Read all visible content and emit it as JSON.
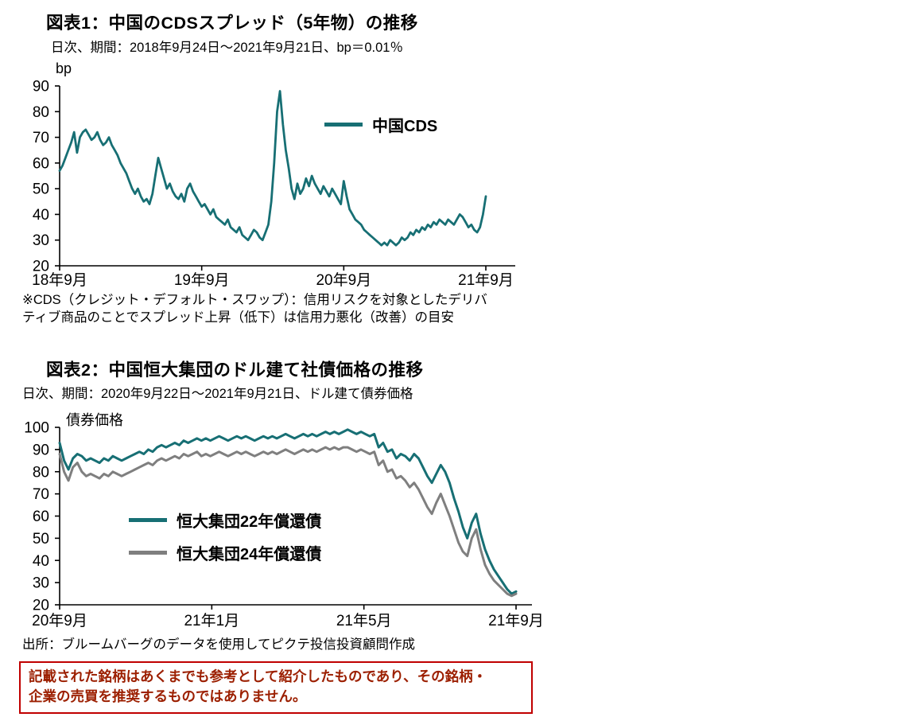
{
  "colors": {
    "teal": "#176f74",
    "gray": "#7f7f7f",
    "axis": "#000000",
    "disclaimer_border": "#c00000",
    "disclaimer_text": "#9c1f00"
  },
  "figure1": {
    "title": "図表1：中国のCDSスプレッド（5年物）の推移",
    "subtitle": "日次、期間：2018年9月24日～2021年9月21日、bp＝0.01％",
    "legend_series1": "中国CDS",
    "note_line1": "※CDS（クレジット・デフォルト・スワップ）：信用リスクを対象としたデリバ",
    "note_line2": "ティブ商品のことでスプレッド上昇（低下）は信用力悪化（改善）の目安"
  },
  "figure2": {
    "title": "図表2：中国恒大集団のドル建て社債価格の推移",
    "subtitle": "日次、期間：2020年9月22日～2021年9月21日、ドル建て債券価格",
    "legend_series1": "恒大集団22年償還債",
    "legend_series2": "恒大集団24年償還債",
    "source": "出所：ブルームバーグのデータを使用してピクテ投信投資顧問作成",
    "disclaimer_line1": "記載された銘柄はあくまでも参考として紹介したものであり、その銘柄・",
    "disclaimer_line2": "企業の売買を推奨するものではありません。"
  },
  "chart_data": [
    {
      "type": "line",
      "title": "図表1：中国のCDSスプレッド（5年物）の推移",
      "subtitle": "日次、期間：2018年9月24日～2021年9月21日、bp＝0.01％",
      "ylabel": "bp",
      "xlabel": "",
      "ylim": [
        20,
        90
      ],
      "ytick_step": 10,
      "grid": false,
      "legend_position": "upper-center",
      "x_tick_labels": [
        "18年9月",
        "19年9月",
        "20年9月",
        "21年9月"
      ],
      "series": [
        {
          "name": "中国CDS",
          "color": "#176f74",
          "values": [
            57,
            59,
            62,
            65,
            68,
            72,
            64,
            70,
            72,
            73,
            71,
            69,
            70,
            72,
            69,
            67,
            68,
            70,
            67,
            65,
            63,
            60,
            58,
            56,
            53,
            50,
            48,
            50,
            47,
            45,
            46,
            44,
            48,
            55,
            62,
            58,
            54,
            50,
            52,
            49,
            47,
            46,
            48,
            45,
            50,
            52,
            49,
            47,
            45,
            43,
            44,
            42,
            40,
            42,
            39,
            38,
            37,
            36,
            38,
            35,
            34,
            33,
            35,
            32,
            31,
            30,
            32,
            34,
            33,
            31,
            30,
            33,
            36,
            45,
            60,
            80,
            88,
            75,
            65,
            58,
            50,
            46,
            52,
            48,
            50,
            54,
            51,
            55,
            52,
            50,
            48,
            51,
            49,
            47,
            50,
            48,
            46,
            44,
            53,
            47,
            42,
            40,
            38,
            37,
            36,
            34,
            33,
            32,
            31,
            30,
            29,
            28,
            29,
            28,
            30,
            29,
            28,
            29,
            31,
            30,
            31,
            33,
            32,
            34,
            33,
            35,
            34,
            36,
            35,
            37,
            36,
            38,
            37,
            36,
            38,
            37,
            36,
            38,
            40,
            39,
            37,
            35,
            36,
            34,
            33,
            35,
            40,
            47
          ]
        }
      ]
    },
    {
      "type": "line",
      "title": "図表2：中国恒大集団のドル建て社債価格の推移",
      "subtitle": "日次、期間：2020年9月22日～2021年9月21日、ドル建て債券価格",
      "ylabel": "債券価格",
      "xlabel": "",
      "ylim": [
        20,
        100
      ],
      "ytick_step": 10,
      "grid": false,
      "legend_position": "lower-left",
      "x_tick_labels": [
        "20年9月",
        "21年1月",
        "21年5月",
        "21年9月"
      ],
      "series": [
        {
          "name": "恒大集団22年償還債",
          "color": "#176f74",
          "values": [
            93,
            85,
            81,
            86,
            88,
            87,
            85,
            86,
            85,
            84,
            86,
            85,
            87,
            86,
            85,
            86,
            87,
            88,
            89,
            88,
            90,
            89,
            91,
            92,
            91,
            92,
            93,
            92,
            94,
            93,
            94,
            95,
            94,
            95,
            94,
            95,
            96,
            95,
            94,
            95,
            96,
            95,
            96,
            95,
            94,
            95,
            96,
            95,
            96,
            95,
            96,
            97,
            96,
            95,
            96,
            97,
            96,
            97,
            96,
            97,
            98,
            97,
            98,
            97,
            98,
            99,
            98,
            97,
            98,
            97,
            96,
            97,
            91,
            93,
            89,
            90,
            86,
            88,
            87,
            85,
            88,
            86,
            82,
            78,
            75,
            79,
            83,
            80,
            75,
            68,
            62,
            55,
            50,
            57,
            61,
            52,
            45,
            40,
            36,
            33,
            30,
            27,
            25,
            26
          ]
        },
        {
          "name": "恒大集団24年償還債",
          "color": "#7f7f7f",
          "values": [
            88,
            80,
            76,
            82,
            84,
            80,
            78,
            79,
            78,
            77,
            79,
            78,
            80,
            79,
            78,
            79,
            80,
            81,
            82,
            83,
            84,
            83,
            85,
            86,
            85,
            86,
            87,
            86,
            88,
            87,
            88,
            89,
            87,
            88,
            87,
            88,
            89,
            88,
            87,
            88,
            89,
            88,
            89,
            88,
            87,
            88,
            89,
            88,
            89,
            88,
            89,
            90,
            89,
            88,
            89,
            90,
            89,
            90,
            89,
            90,
            91,
            90,
            91,
            90,
            91,
            91,
            90,
            89,
            90,
            89,
            88,
            89,
            83,
            85,
            80,
            81,
            77,
            78,
            76,
            73,
            75,
            72,
            68,
            64,
            61,
            66,
            70,
            65,
            60,
            54,
            48,
            44,
            42,
            50,
            54,
            45,
            38,
            34,
            31,
            29,
            27,
            25,
            24,
            25
          ]
        }
      ]
    }
  ]
}
